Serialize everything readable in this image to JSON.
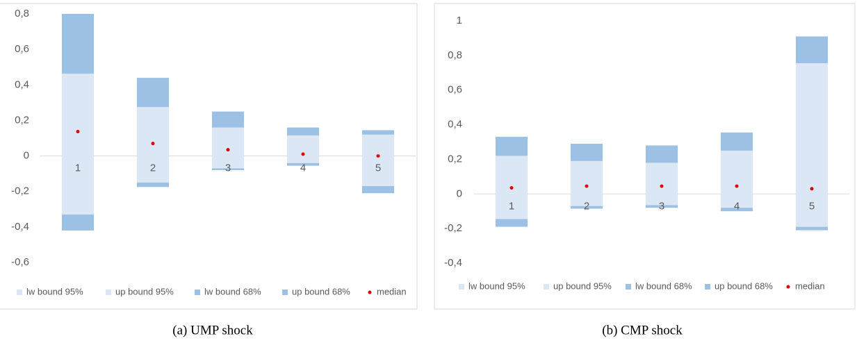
{
  "chart_data": [
    {
      "type": "floating-bar",
      "caption": "(a) UMP shock",
      "categories": [
        "1",
        "2",
        "3",
        "4",
        "5"
      ],
      "series": [
        {
          "name": "lw bound 95%",
          "color": "#dce7f5",
          "values": [
            -0.42,
            -0.175,
            -0.08,
            -0.055,
            -0.21
          ]
        },
        {
          "name": "up bound 95%",
          "color": "#dce7f5",
          "values": [
            0.8,
            0.44,
            0.25,
            0.16,
            0.145
          ]
        },
        {
          "name": "lw bound 68%",
          "color": "#9dc1e4",
          "values": [
            -0.33,
            -0.15,
            -0.07,
            -0.04,
            -0.17
          ]
        },
        {
          "name": "up bound 68%",
          "color": "#9dc1e4",
          "values": [
            0.463,
            0.275,
            0.16,
            0.115,
            0.12
          ]
        },
        {
          "name": "median",
          "color": "#e00000",
          "values": [
            0.137,
            0.07,
            0.035,
            0.01,
            0
          ]
        }
      ],
      "ylim": [
        -0.6,
        0.8
      ],
      "yticks": [
        {
          "value": -0.6,
          "label": "-0,6"
        },
        {
          "value": -0.4,
          "label": "-0,4"
        },
        {
          "value": -0.2,
          "label": "-0,2"
        },
        0,
        {
          "value": 0.2,
          "label": "0,2"
        },
        {
          "value": 0.4,
          "label": "0,4"
        },
        {
          "value": 0.6,
          "label": "0,6"
        },
        {
          "value": 0.8,
          "label": "0,8"
        }
      ]
    },
    {
      "type": "floating-bar",
      "caption": "(b) CMP shock",
      "categories": [
        "1",
        "2",
        "3",
        "4",
        "5"
      ],
      "series": [
        {
          "name": "lw bound 95%",
          "color": "#dce7f5",
          "values": [
            -0.19,
            -0.085,
            -0.08,
            -0.1,
            -0.21
          ]
        },
        {
          "name": "up bound 95%",
          "color": "#dce7f5",
          "values": [
            0.33,
            0.29,
            0.28,
            0.355,
            0.91
          ]
        },
        {
          "name": "lw bound 68%",
          "color": "#9dc1e4",
          "values": [
            -0.145,
            -0.07,
            -0.065,
            -0.08,
            -0.19
          ]
        },
        {
          "name": "up bound 68%",
          "color": "#9dc1e4",
          "values": [
            0.22,
            0.19,
            0.18,
            0.25,
            0.755
          ]
        },
        {
          "name": "median",
          "color": "#e00000",
          "values": [
            0.035,
            0.045,
            0.045,
            0.045,
            0.03
          ]
        }
      ],
      "ylim": [
        -0.4,
        1
      ],
      "yticks": [
        {
          "value": -0.4,
          "label": "-0,4"
        },
        {
          "value": -0.2,
          "label": "-0,2"
        },
        0,
        {
          "value": 0.2,
          "label": "0,2"
        },
        {
          "value": 0.4,
          "label": "0,4"
        },
        {
          "value": 0.6,
          "label": "0,6"
        },
        {
          "value": 0.8,
          "label": "0,8"
        },
        1
      ]
    }
  ]
}
